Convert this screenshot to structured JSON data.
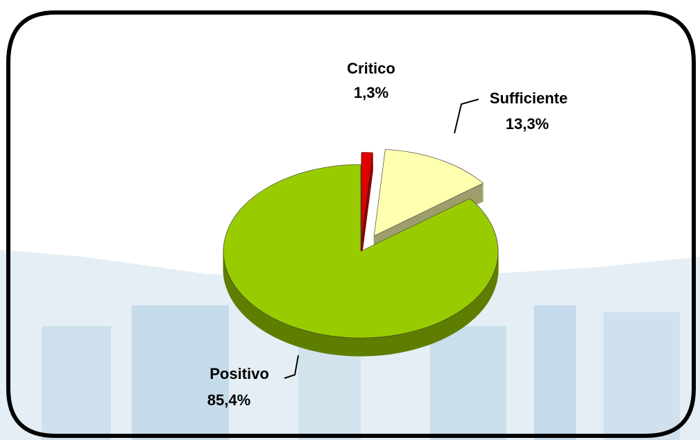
{
  "chart_data": {
    "type": "pie",
    "categories": [
      "Critico",
      "Sufficiente",
      "Positivo"
    ],
    "values": [
      1.3,
      13.3,
      85.4
    ],
    "value_labels": [
      "1,3%",
      "13,3%",
      "85,4%"
    ],
    "colors": [
      "#e00000",
      "#ffffb0",
      "#99cc00"
    ]
  }
}
